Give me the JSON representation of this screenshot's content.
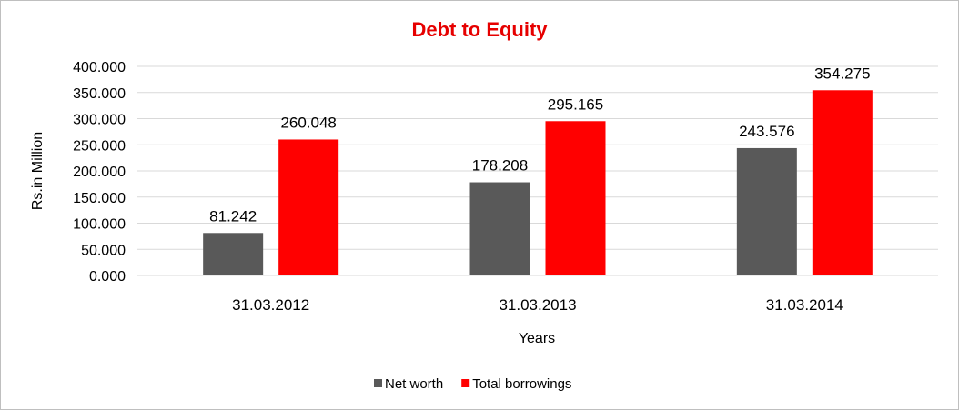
{
  "chart_data": {
    "type": "bar",
    "title": "Debt to Equity",
    "xlabel": "Years",
    "ylabel": "Rs.in Million",
    "categories": [
      "31.03.2012",
      "31.03.2013",
      "31.03.2014"
    ],
    "series": [
      {
        "name": "Net worth",
        "values": [
          81.242,
          178.208,
          243.576
        ],
        "color": "#595959"
      },
      {
        "name": "Total borrowings",
        "values": [
          260.048,
          295.165,
          354.275
        ],
        "color": "#ff0000"
      }
    ],
    "ylim": [
      0,
      400
    ],
    "yticks": [
      "0.000",
      "50.000",
      "100.000",
      "150.000",
      "200.000",
      "250.000",
      "300.000",
      "350.000",
      "400.000"
    ],
    "data_labels": [
      [
        "81.242",
        "178.208",
        "243.576"
      ],
      [
        "260.048",
        "295.165",
        "354.275"
      ]
    ],
    "grid": true,
    "legend_position": "bottom",
    "title_color": "#e60000",
    "gridline_color": "#d9d9d9"
  }
}
